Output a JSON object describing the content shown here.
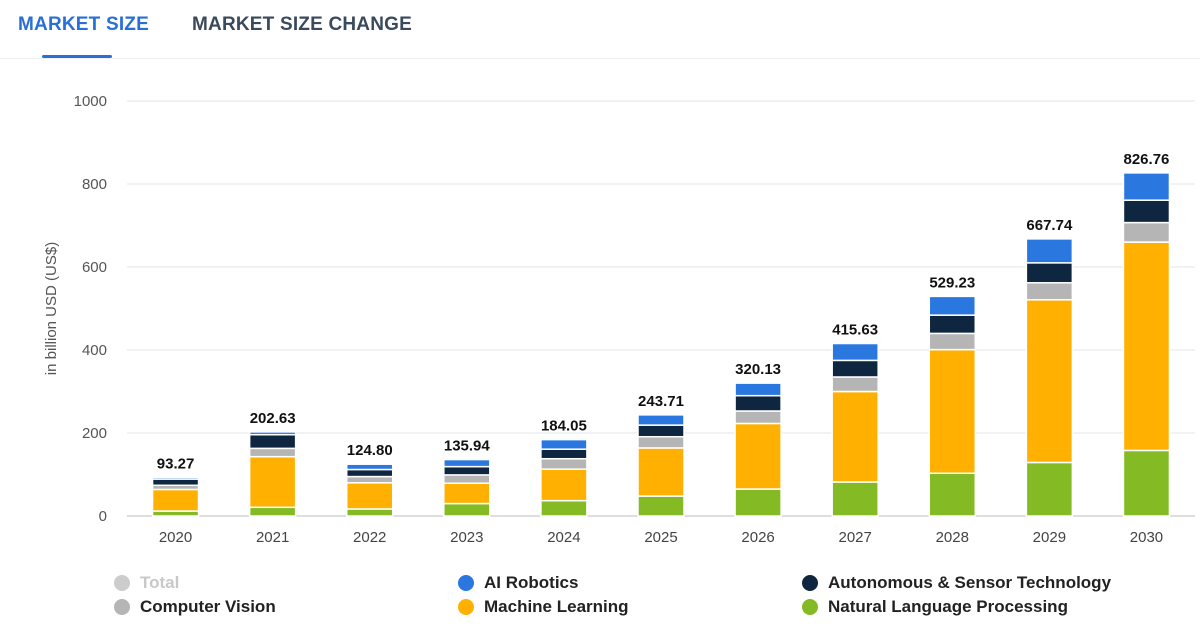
{
  "tabs": {
    "market_size": "MARKET SIZE",
    "market_size_change": "MARKET SIZE CHANGE"
  },
  "legend": [
    {
      "label": "Total",
      "color": "#cccccc",
      "enabled": false
    },
    {
      "label": "AI Robotics",
      "color": "#2b77e0",
      "enabled": true
    },
    {
      "label": "Autonomous & Sensor Technology",
      "color": "#0f2640",
      "enabled": true
    },
    {
      "label": "Computer Vision",
      "color": "#b5b5b5",
      "enabled": true
    },
    {
      "label": "Machine Learning",
      "color": "#ffb000",
      "enabled": true
    },
    {
      "label": "Natural Language Processing",
      "color": "#84bb25",
      "enabled": true
    }
  ],
  "chart_data": {
    "type": "bar",
    "stacked": true,
    "title": "",
    "xlabel": "",
    "ylabel": "in billion USD (US$)",
    "ylim": [
      0,
      1000
    ],
    "yticks": [
      0,
      200,
      400,
      600,
      800,
      1000
    ],
    "categories": [
      "2020",
      "2021",
      "2022",
      "2023",
      "2024",
      "2025",
      "2026",
      "2027",
      "2028",
      "2029",
      "2030"
    ],
    "totals": [
      93.27,
      202.63,
      124.8,
      135.94,
      184.05,
      243.71,
      320.13,
      415.63,
      529.23,
      667.74,
      826.76
    ],
    "total_labels": [
      "93.27",
      "202.63",
      "124.80",
      "135.94",
      "184.05",
      "243.71",
      "320.13",
      "415.63",
      "529.23",
      "667.74",
      "826.76"
    ],
    "series": [
      {
        "name": "Natural Language Processing",
        "color": "#84bb25",
        "values": [
          12,
          21,
          17,
          30,
          37,
          48,
          65,
          82,
          103,
          129,
          158
        ]
      },
      {
        "name": "Machine Learning",
        "color": "#ffb000",
        "values": [
          52,
          122,
          63,
          49,
          76,
          116,
          158,
          218,
          298,
          392,
          502
        ]
      },
      {
        "name": "Computer Vision",
        "color": "#b5b5b5",
        "values": [
          10,
          20,
          15,
          20,
          25,
          27,
          30,
          35,
          39,
          41,
          47
        ]
      },
      {
        "name": "Autonomous & Sensor Technology",
        "color": "#0f2640",
        "values": [
          15,
          33,
          17,
          20,
          23,
          28,
          37,
          40,
          44,
          48,
          54
        ]
      },
      {
        "name": "AI Robotics",
        "color": "#2b77e0",
        "values": [
          4.27,
          6.63,
          12.8,
          16.94,
          23.05,
          24.71,
          30.13,
          40.63,
          45.23,
          57.74,
          65.76
        ]
      }
    ]
  }
}
